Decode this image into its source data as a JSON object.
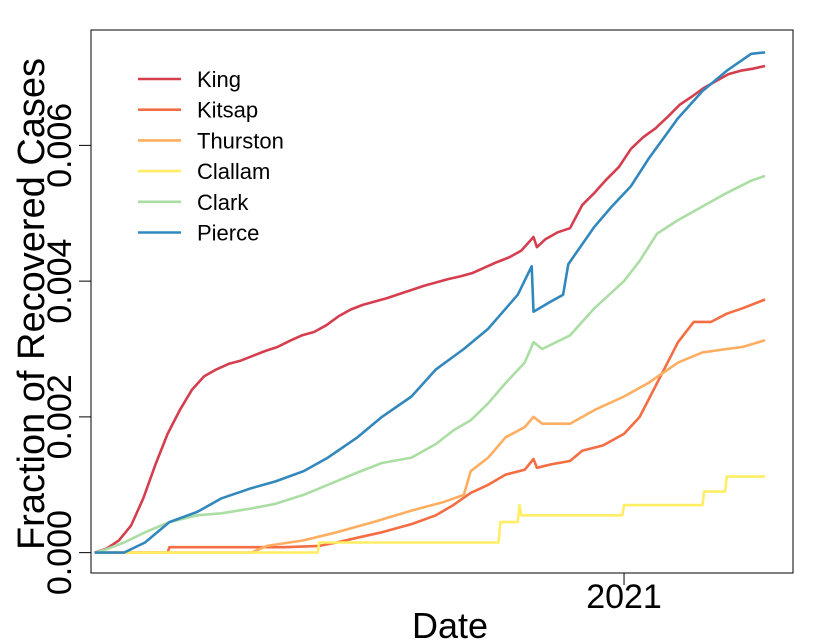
{
  "chart_data": {
    "type": "line",
    "xlabel": "Date",
    "ylabel": "Fraction of Recovered Cases",
    "x_ticks": [
      {
        "value": "2021-01-01",
        "label": "2021"
      }
    ],
    "y_ticks": [
      {
        "value": 0.0,
        "label": "0.000"
      },
      {
        "value": 0.002,
        "label": "0.002"
      },
      {
        "value": 0.004,
        "label": "0.004"
      },
      {
        "value": 0.006,
        "label": "0.006"
      }
    ],
    "xlim": [
      "2020-03-01",
      "2021-04-08"
    ],
    "ylim": [
      -0.0003,
      0.0077
    ],
    "grid": false,
    "legend_position": "top-left",
    "series": [
      {
        "name": "King",
        "color": "#d53e4f",
        "points": [
          [
            "2020-03-03",
            0.0
          ],
          [
            "2020-03-10",
            6e-05
          ],
          [
            "2020-03-17",
            0.00018
          ],
          [
            "2020-03-24",
            0.0004
          ],
          [
            "2020-03-31",
            0.0008
          ],
          [
            "2020-04-07",
            0.0013
          ],
          [
            "2020-04-14",
            0.00175
          ],
          [
            "2020-04-21",
            0.0021
          ],
          [
            "2020-04-28",
            0.0024
          ],
          [
            "2020-05-05",
            0.0026
          ],
          [
            "2020-05-12",
            0.0027
          ],
          [
            "2020-05-19",
            0.00278
          ],
          [
            "2020-05-26",
            0.00283
          ],
          [
            "2020-06-02",
            0.0029
          ],
          [
            "2020-06-09",
            0.00297
          ],
          [
            "2020-06-16",
            0.00303
          ],
          [
            "2020-06-23",
            0.00312
          ],
          [
            "2020-06-30",
            0.0032
          ],
          [
            "2020-07-07",
            0.00325
          ],
          [
            "2020-07-14",
            0.00335
          ],
          [
            "2020-07-21",
            0.00348
          ],
          [
            "2020-07-28",
            0.00358
          ],
          [
            "2020-08-04",
            0.00365
          ],
          [
            "2020-08-11",
            0.0037
          ],
          [
            "2020-08-18",
            0.00375
          ],
          [
            "2020-08-25",
            0.00381
          ],
          [
            "2020-09-01",
            0.00387
          ],
          [
            "2020-09-08",
            0.00393
          ],
          [
            "2020-09-15",
            0.00398
          ],
          [
            "2020-09-22",
            0.00403
          ],
          [
            "2020-09-29",
            0.00407
          ],
          [
            "2020-10-06",
            0.00412
          ],
          [
            "2020-10-13",
            0.0042
          ],
          [
            "2020-10-20",
            0.00428
          ],
          [
            "2020-10-27",
            0.00435
          ],
          [
            "2020-11-03",
            0.00445
          ],
          [
            "2020-11-10",
            0.00465
          ],
          [
            "2020-11-12",
            0.0045
          ],
          [
            "2020-11-17",
            0.00462
          ],
          [
            "2020-11-24",
            0.00472
          ],
          [
            "2020-12-01",
            0.00478
          ],
          [
            "2020-12-08",
            0.00512
          ],
          [
            "2020-12-15",
            0.0053
          ],
          [
            "2020-12-22",
            0.0055
          ],
          [
            "2020-12-29",
            0.00568
          ],
          [
            "2021-01-05",
            0.00595
          ],
          [
            "2021-01-12",
            0.00612
          ],
          [
            "2021-01-19",
            0.00625
          ],
          [
            "2021-01-26",
            0.00642
          ],
          [
            "2021-02-02",
            0.0066
          ],
          [
            "2021-02-09",
            0.00672
          ],
          [
            "2021-02-16",
            0.00685
          ],
          [
            "2021-02-23",
            0.00695
          ],
          [
            "2021-03-02",
            0.00705
          ],
          [
            "2021-03-09",
            0.0071
          ],
          [
            "2021-03-16",
            0.00713
          ],
          [
            "2021-03-23",
            0.00717
          ]
        ]
      },
      {
        "name": "Kitsap",
        "color": "#f46d43",
        "points": [
          [
            "2020-03-03",
            0.0
          ],
          [
            "2020-04-14",
            0.0
          ],
          [
            "2020-04-15",
            8e-05
          ],
          [
            "2020-05-20",
            8e-05
          ],
          [
            "2020-06-20",
            8e-05
          ],
          [
            "2020-07-10",
            0.0001
          ],
          [
            "2020-07-20",
            0.00015
          ],
          [
            "2020-08-01",
            0.00022
          ],
          [
            "2020-08-15",
            0.0003
          ],
          [
            "2020-09-01",
            0.00042
          ],
          [
            "2020-09-15",
            0.00055
          ],
          [
            "2020-09-25",
            0.0007
          ],
          [
            "2020-10-05",
            0.00088
          ],
          [
            "2020-10-15",
            0.001
          ],
          [
            "2020-10-25",
            0.00115
          ],
          [
            "2020-11-05",
            0.00122
          ],
          [
            "2020-11-10",
            0.00138
          ],
          [
            "2020-11-12",
            0.00125
          ],
          [
            "2020-11-20",
            0.0013
          ],
          [
            "2020-12-01",
            0.00135
          ],
          [
            "2020-12-08",
            0.0015
          ],
          [
            "2020-12-20",
            0.00158
          ],
          [
            "2021-01-01",
            0.00175
          ],
          [
            "2021-01-10",
            0.002
          ],
          [
            "2021-01-20",
            0.0025
          ],
          [
            "2021-02-01",
            0.0031
          ],
          [
            "2021-02-10",
            0.0034
          ],
          [
            "2021-02-20",
            0.0034
          ],
          [
            "2021-03-01",
            0.00352
          ],
          [
            "2021-03-10",
            0.0036
          ],
          [
            "2021-03-23",
            0.00373
          ]
        ]
      },
      {
        "name": "Thurston",
        "color": "#fdae61",
        "points": [
          [
            "2020-03-03",
            0.0
          ],
          [
            "2020-06-01",
            0.0
          ],
          [
            "2020-06-10",
            0.0001
          ],
          [
            "2020-07-01",
            0.00018
          ],
          [
            "2020-07-20",
            0.0003
          ],
          [
            "2020-08-10",
            0.00045
          ],
          [
            "2020-09-01",
            0.00062
          ],
          [
            "2020-09-20",
            0.00075
          ],
          [
            "2020-10-01",
            0.00085
          ],
          [
            "2020-10-05",
            0.0012
          ],
          [
            "2020-10-15",
            0.0014
          ],
          [
            "2020-10-25",
            0.0017
          ],
          [
            "2020-11-05",
            0.00185
          ],
          [
            "2020-11-10",
            0.002
          ],
          [
            "2020-11-15",
            0.0019
          ],
          [
            "2020-12-01",
            0.0019
          ],
          [
            "2020-12-15",
            0.0021
          ],
          [
            "2021-01-01",
            0.0023
          ],
          [
            "2021-01-15",
            0.0025
          ],
          [
            "2021-02-01",
            0.0028
          ],
          [
            "2021-02-15",
            0.00295
          ],
          [
            "2021-03-01",
            0.003
          ],
          [
            "2021-03-10",
            0.00303
          ],
          [
            "2021-03-23",
            0.00313
          ]
        ]
      },
      {
        "name": "Clallam",
        "color": "#ffee65",
        "points": [
          [
            "2020-03-03",
            0.0
          ],
          [
            "2020-07-09",
            0.0
          ],
          [
            "2020-07-10",
            0.00015
          ],
          [
            "2020-10-21",
            0.00015
          ],
          [
            "2020-10-22",
            0.00045
          ],
          [
            "2020-11-01",
            0.00045
          ],
          [
            "2020-11-02",
            0.0007
          ],
          [
            "2020-11-03",
            0.00055
          ],
          [
            "2020-12-31",
            0.00055
          ],
          [
            "2021-01-01",
            0.0007
          ],
          [
            "2021-01-15",
            0.0007
          ],
          [
            "2021-02-15",
            0.0007
          ],
          [
            "2021-02-16",
            0.0009
          ],
          [
            "2021-02-28",
            0.0009
          ],
          [
            "2021-03-01",
            0.00112
          ],
          [
            "2021-03-23",
            0.00112
          ]
        ]
      },
      {
        "name": "Clark",
        "color": "#abdda4",
        "points": [
          [
            "2020-03-03",
            0.0
          ],
          [
            "2020-03-10",
            5e-05
          ],
          [
            "2020-03-20",
            0.00015
          ],
          [
            "2020-04-01",
            0.0003
          ],
          [
            "2020-04-15",
            0.00045
          ],
          [
            "2020-05-01",
            0.00055
          ],
          [
            "2020-05-15",
            0.00058
          ],
          [
            "2020-06-01",
            0.00065
          ],
          [
            "2020-06-15",
            0.00072
          ],
          [
            "2020-07-01",
            0.00085
          ],
          [
            "2020-07-15",
            0.001
          ],
          [
            "2020-08-01",
            0.00118
          ],
          [
            "2020-08-15",
            0.00132
          ],
          [
            "2020-09-01",
            0.0014
          ],
          [
            "2020-09-15",
            0.0016
          ],
          [
            "2020-09-25",
            0.0018
          ],
          [
            "2020-10-05",
            0.00195
          ],
          [
            "2020-10-15",
            0.0022
          ],
          [
            "2020-10-25",
            0.0025
          ],
          [
            "2020-11-05",
            0.0028
          ],
          [
            "2020-11-10",
            0.0031
          ],
          [
            "2020-11-15",
            0.003
          ],
          [
            "2020-12-01",
            0.0032
          ],
          [
            "2020-12-15",
            0.0036
          ],
          [
            "2021-01-01",
            0.004
          ],
          [
            "2021-01-10",
            0.0043
          ],
          [
            "2021-01-20",
            0.0047
          ],
          [
            "2021-02-01",
            0.0049
          ],
          [
            "2021-02-15",
            0.0051
          ],
          [
            "2021-03-01",
            0.0053
          ],
          [
            "2021-03-15",
            0.00548
          ],
          [
            "2021-03-23",
            0.00555
          ]
        ]
      },
      {
        "name": "Pierce",
        "color": "#3288bd",
        "points": [
          [
            "2020-03-03",
            0.0
          ],
          [
            "2020-03-20",
            0.0
          ],
          [
            "2020-04-01",
            0.00015
          ],
          [
            "2020-04-15",
            0.00045
          ],
          [
            "2020-05-01",
            0.0006
          ],
          [
            "2020-05-15",
            0.0008
          ],
          [
            "2020-06-01",
            0.00095
          ],
          [
            "2020-06-15",
            0.00105
          ],
          [
            "2020-07-01",
            0.0012
          ],
          [
            "2020-07-15",
            0.0014
          ],
          [
            "2020-08-01",
            0.0017
          ],
          [
            "2020-08-15",
            0.002
          ],
          [
            "2020-09-01",
            0.0023
          ],
          [
            "2020-09-15",
            0.0027
          ],
          [
            "2020-10-01",
            0.003
          ],
          [
            "2020-10-15",
            0.0033
          ],
          [
            "2020-11-01",
            0.0038
          ],
          [
            "2020-11-09",
            0.00422
          ],
          [
            "2020-11-10",
            0.00355
          ],
          [
            "2020-11-20",
            0.0037
          ],
          [
            "2020-11-27",
            0.0038
          ],
          [
            "2020-11-30",
            0.00425
          ],
          [
            "2020-12-15",
            0.0048
          ],
          [
            "2020-12-25",
            0.0051
          ],
          [
            "2021-01-05",
            0.0054
          ],
          [
            "2021-01-15",
            0.0058
          ],
          [
            "2021-02-01",
            0.0064
          ],
          [
            "2021-02-15",
            0.0068
          ],
          [
            "2021-03-01",
            0.0071
          ],
          [
            "2021-03-15",
            0.00735
          ],
          [
            "2021-03-23",
            0.00737
          ]
        ]
      }
    ]
  }
}
